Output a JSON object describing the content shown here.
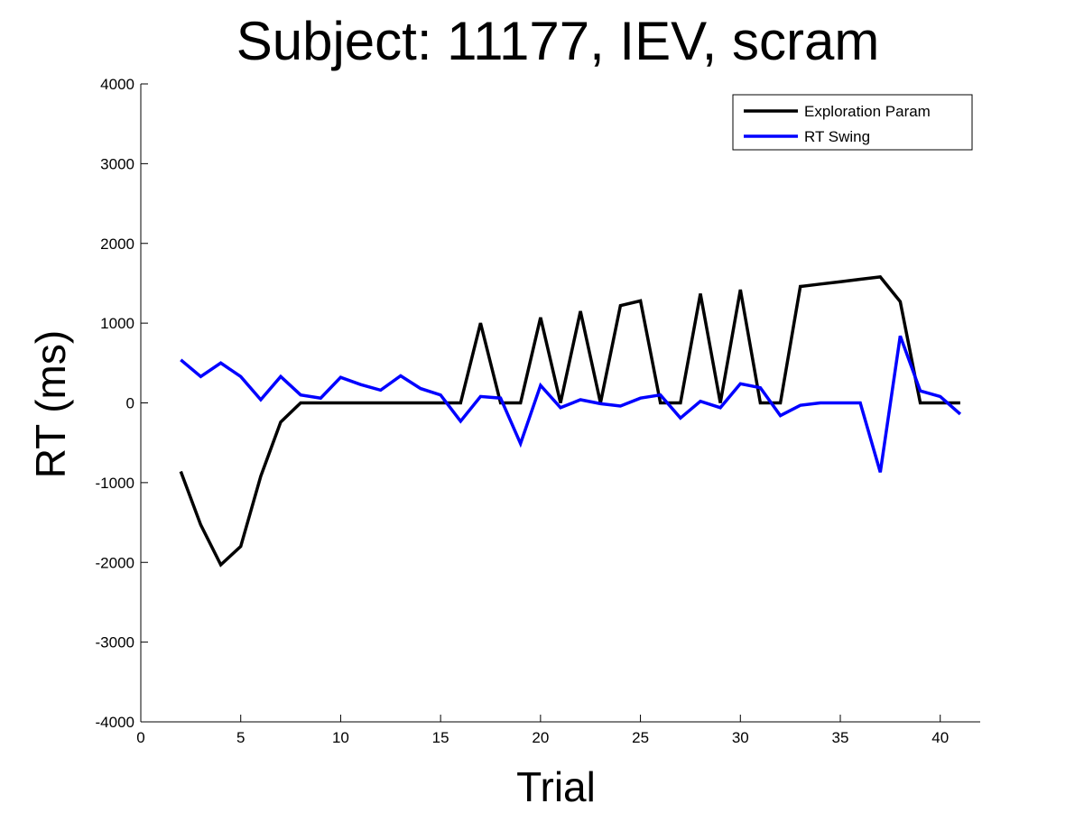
{
  "chart_data": {
    "type": "line",
    "title": "Subject: 11177, IEV, scram",
    "xlabel": "Trial",
    "ylabel": "RT (ms)",
    "xlim": [
      0,
      42
    ],
    "ylim": [
      -4000,
      4000
    ],
    "xticks": [
      0,
      5,
      10,
      15,
      20,
      25,
      30,
      35,
      40
    ],
    "yticks": [
      -4000,
      -3000,
      -2000,
      -1000,
      0,
      1000,
      2000,
      3000,
      4000
    ],
    "grid": false,
    "legend_position": "top-right",
    "x": [
      2,
      3,
      4,
      5,
      6,
      7,
      8,
      9,
      10,
      11,
      12,
      13,
      14,
      15,
      16,
      17,
      18,
      19,
      20,
      21,
      22,
      23,
      24,
      25,
      26,
      27,
      28,
      29,
      30,
      31,
      32,
      33,
      34,
      35,
      36,
      37,
      38,
      39,
      40,
      41
    ],
    "series": [
      {
        "name": "Exploration Param",
        "color": "#000000",
        "values": [
          -860,
          -1530,
          -2030,
          -1800,
          -920,
          -240,
          0,
          0,
          0,
          0,
          0,
          0,
          0,
          0,
          0,
          1000,
          0,
          0,
          1070,
          0,
          1150,
          0,
          1220,
          1280,
          0,
          0,
          1370,
          0,
          1420,
          0,
          0,
          1460,
          1490,
          1520,
          1550,
          1580,
          1270,
          0,
          0,
          0
        ]
      },
      {
        "name": "RT Swing",
        "color": "#0000ff",
        "values": [
          540,
          330,
          500,
          330,
          40,
          330,
          100,
          60,
          320,
          230,
          160,
          340,
          180,
          100,
          -230,
          80,
          60,
          -510,
          220,
          -60,
          40,
          -10,
          -40,
          60,
          100,
          -190,
          20,
          -60,
          240,
          190,
          -160,
          -30,
          0,
          0,
          0,
          -870,
          840,
          150,
          80,
          -140
        ]
      }
    ]
  }
}
